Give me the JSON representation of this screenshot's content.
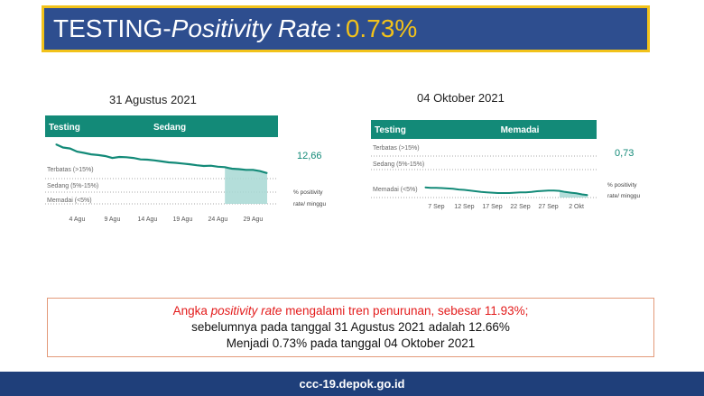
{
  "header": {
    "title_prefix": "TESTING-",
    "title_italic": "Positivity Rate",
    "title_colon": ":",
    "title_value": "0.73%"
  },
  "colors": {
    "header_bg": "#2e4e8f",
    "header_border": "#f2c21a",
    "accent_teal": "#138a78",
    "shade": "#a7d8d4",
    "footer_bg": "#1f3f7a",
    "highlight_red": "#e31b1b"
  },
  "chart_data": [
    {
      "type": "line",
      "date_label": "31 Agustus 2021",
      "header_left": "Testing",
      "header_status": "Sedang",
      "value_text": "12,66",
      "value_caption": [
        "% positivity",
        "rate/ minggu"
      ],
      "zones": [
        "Terbatas (>15%)",
        "Sedang (5%-15%)",
        "Memadai (<5%)"
      ],
      "x_ticks": [
        "4 Agu",
        "9 Agu",
        "14 Agu",
        "19 Agu",
        "24 Agu",
        "29 Agu"
      ],
      "x": [
        "1 Agu",
        "2 Agu",
        "3 Agu",
        "4 Agu",
        "5 Agu",
        "6 Agu",
        "7 Agu",
        "8 Agu",
        "9 Agu",
        "10 Agu",
        "11 Agu",
        "12 Agu",
        "13 Agu",
        "14 Agu",
        "15 Agu",
        "16 Agu",
        "17 Agu",
        "18 Agu",
        "19 Agu",
        "20 Agu",
        "21 Agu",
        "22 Agu",
        "23 Agu",
        "24 Agu",
        "25 Agu",
        "26 Agu",
        "27 Agu",
        "28 Agu",
        "29 Agu",
        "30 Agu",
        "31 Agu"
      ],
      "values": [
        24.5,
        23.2,
        22.8,
        21.5,
        21.0,
        20.4,
        20.1,
        19.7,
        18.9,
        19.3,
        19.2,
        18.9,
        18.3,
        18.2,
        17.9,
        17.5,
        17.1,
        16.9,
        16.6,
        16.3,
        15.9,
        15.6,
        15.7,
        15.3,
        15.1,
        14.5,
        14.3,
        14.0,
        14.0,
        13.5,
        12.66
      ]
    },
    {
      "type": "line",
      "date_label": "04 Oktober 2021",
      "header_left": "Testing",
      "header_status": "Memadai",
      "value_text": "0,73",
      "value_caption": [
        "% positivity",
        "rate/ minggu"
      ],
      "zones": [
        "Terbatas (>15%)",
        "Sedang (5%-15%)",
        "Memadai (<5%)"
      ],
      "x_ticks": [
        "7 Sep",
        "12 Sep",
        "17 Sep",
        "22 Sep",
        "27 Sep",
        "2 Okt"
      ],
      "x": [
        "5 Sep",
        "6 Sep",
        "7 Sep",
        "8 Sep",
        "9 Sep",
        "10 Sep",
        "11 Sep",
        "12 Sep",
        "13 Sep",
        "14 Sep",
        "15 Sep",
        "16 Sep",
        "17 Sep",
        "18 Sep",
        "19 Sep",
        "20 Sep",
        "21 Sep",
        "22 Sep",
        "23 Sep",
        "24 Sep",
        "25 Sep",
        "26 Sep",
        "27 Sep",
        "28 Sep",
        "29 Sep",
        "30 Sep",
        "1 Okt",
        "2 Okt",
        "3 Okt",
        "4 Okt"
      ],
      "values": [
        2.9,
        2.8,
        2.8,
        2.7,
        2.6,
        2.5,
        2.3,
        2.2,
        2.0,
        1.8,
        1.6,
        1.5,
        1.4,
        1.3,
        1.3,
        1.3,
        1.4,
        1.5,
        1.5,
        1.6,
        1.8,
        1.9,
        2.0,
        2.0,
        1.9,
        1.6,
        1.4,
        1.2,
        0.9,
        0.73
      ]
    }
  ],
  "summary": {
    "line1_start": "Angka ",
    "line1_italic": "positivity rate",
    "line1_end": " mengalami tren penurunan, sebesar 11.93%;",
    "line2": "sebelumnya pada tanggal 31 Agustus  2021 adalah  12.66%",
    "line3": "Menjadi 0.73% pada tanggal 04 Oktober 2021"
  },
  "footer": {
    "url": "ccc-19.depok.go.id"
  }
}
